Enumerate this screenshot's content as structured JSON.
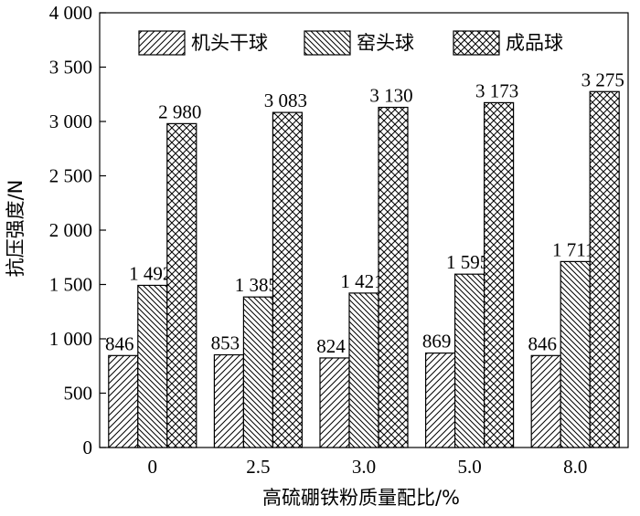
{
  "chart_data": {
    "type": "bar",
    "xlabel": "高硫硼铁粉质量配比/%",
    "ylabel": "抗压强度/N",
    "categories": [
      "0",
      "2.5",
      "3.0",
      "5.0",
      "8.0"
    ],
    "ylim": [
      0,
      4000
    ],
    "yticks": [
      0,
      500,
      1000,
      1500,
      2000,
      2500,
      3000,
      3500,
      4000
    ],
    "ytick_labels": [
      "0",
      "500",
      "1 000",
      "1 500",
      "2 000",
      "2 500",
      "3 000",
      "3 500",
      "4 000"
    ],
    "legend_position": "top",
    "grid": false,
    "series": [
      {
        "name": "机头干球",
        "pattern": "forward-diagonal-hatch",
        "values": [
          846,
          853,
          824,
          869,
          846
        ],
        "labels": [
          "846",
          "853",
          "824",
          "869",
          "846"
        ]
      },
      {
        "name": "窑头球",
        "pattern": "backward-diagonal-hatch",
        "values": [
          1492,
          1385,
          1421,
          1595,
          1711
        ],
        "labels": [
          "1 492",
          "1 385",
          "1 421",
          "1 595",
          "1 711"
        ]
      },
      {
        "name": "成品球",
        "pattern": "cross-hatch",
        "values": [
          2980,
          3083,
          3130,
          3173,
          3275
        ],
        "labels": [
          "2 980",
          "3 083",
          "3 130",
          "3 173",
          "3 275"
        ]
      }
    ]
  }
}
